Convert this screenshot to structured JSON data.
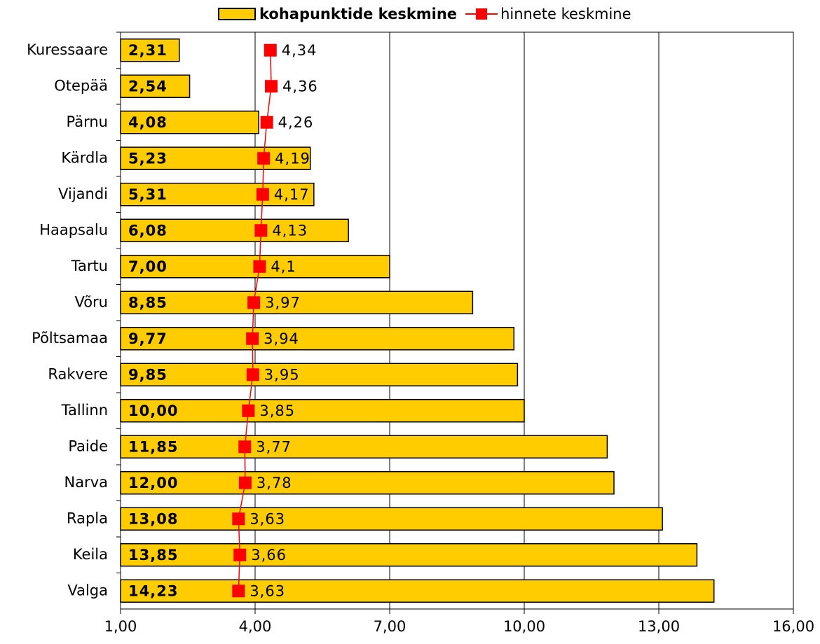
{
  "chart_data": {
    "type": "bar",
    "orientation": "horizontal",
    "categories": [
      "Kuressaare",
      "Otepää",
      "Pärnu",
      "Kärdla",
      "Vijandi",
      "Haapsalu",
      "Tartu",
      "Võru",
      "Põltsamaa",
      "Rakvere",
      "Tallinn",
      "Paide",
      "Narva",
      "Rapla",
      "Keila",
      "Valga"
    ],
    "series": [
      {
        "name": "kohapunktide keskmine",
        "type": "bar",
        "color": "#ffcc00",
        "values": [
          2.31,
          2.54,
          4.08,
          5.23,
          5.31,
          6.08,
          7.0,
          8.85,
          9.77,
          9.85,
          10.0,
          11.85,
          12.0,
          13.08,
          13.85,
          14.23
        ],
        "value_labels": [
          "2,31",
          "2,54",
          "4,08",
          "5,23",
          "5,31",
          "6,08",
          "7,00",
          "8,85",
          "9,77",
          "9,85",
          "10,00",
          "11,85",
          "12,00",
          "13,08",
          "13,85",
          "14,23"
        ]
      },
      {
        "name": "hinnete keskmine",
        "type": "line",
        "color": "#ff0000",
        "values": [
          4.34,
          4.36,
          4.26,
          4.19,
          4.17,
          4.13,
          4.1,
          3.97,
          3.94,
          3.95,
          3.85,
          3.77,
          3.78,
          3.63,
          3.66,
          3.63
        ],
        "value_labels": [
          "4,34",
          "4,36",
          "4,26",
          "4,19",
          "4,17",
          "4,13",
          "4,1",
          "3,97",
          "3,94",
          "3,95",
          "3,85",
          "3,77",
          "3,78",
          "3,63",
          "3,66",
          "3,63"
        ]
      }
    ],
    "xlim": [
      1,
      16
    ],
    "xticks": [
      {
        "value": 1,
        "label": "1,00"
      },
      {
        "value": 4,
        "label": "4,00"
      },
      {
        "value": 7,
        "label": "7,00"
      },
      {
        "value": 10,
        "label": "10,00"
      },
      {
        "value": 13,
        "label": "13,00"
      },
      {
        "value": 16,
        "label": "16,00"
      }
    ],
    "grid": true,
    "legend": "top"
  }
}
